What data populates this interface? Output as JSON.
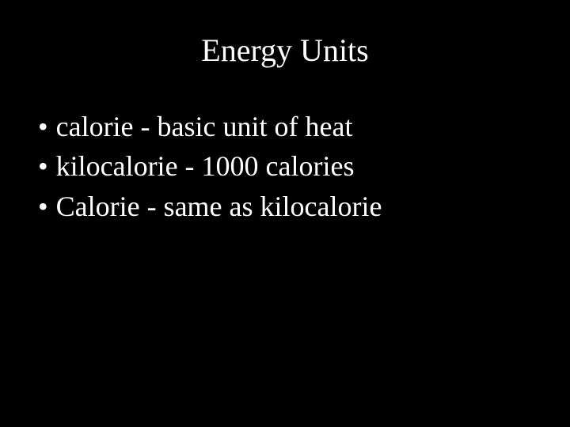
{
  "slide": {
    "title": "Energy Units",
    "title_fontsize": 40,
    "title_color": "#ffffff",
    "background_color": "#000000",
    "bullet_fontsize": 36,
    "bullet_color": "#ffffff",
    "bullet_marker": "•",
    "bullets": [
      "calorie - basic unit of heat",
      "kilocalorie - 1000 calories",
      "Calorie - same as kilocalorie"
    ]
  }
}
